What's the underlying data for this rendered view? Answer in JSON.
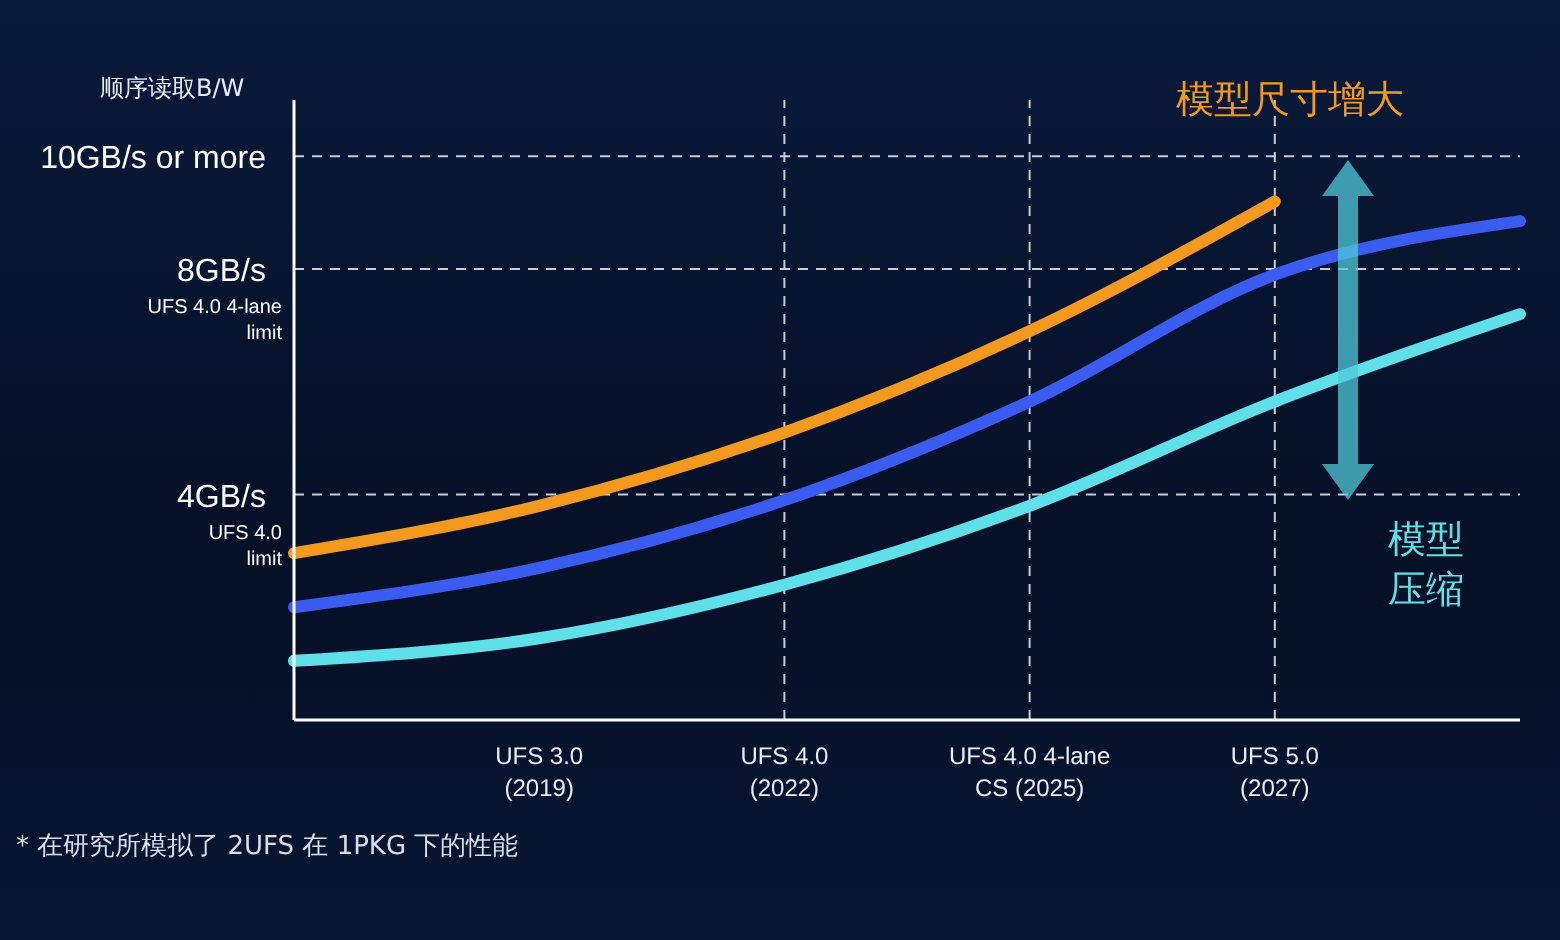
{
  "chart_data": {
    "type": "line",
    "ylabel": "顺序读取B/W",
    "categories": [
      null,
      "UFS 3.0\n(2019)",
      "UFS 4.0\n(2022)",
      "UFS 4.0 4-lane\nCS (2025)",
      "UFS 5.0\n(2027)",
      null
    ],
    "series": [
      {
        "color": "#f39a1e",
        "values": [
          2.96,
          3.8,
          5.1,
          6.9,
          9.2,
          null
        ]
      },
      {
        "color": "#3a5cf0",
        "values": [
          2.0,
          2.7,
          3.9,
          5.65,
          7.9,
          8.85
        ]
      },
      {
        "color": "#5fe0e8",
        "values": [
          1.05,
          1.45,
          2.4,
          3.8,
          5.65,
          7.2
        ]
      }
    ],
    "ylim": [
      0,
      11
    ],
    "yticks": [
      {
        "value": 4,
        "label": "4GB/s"
      },
      {
        "value": 8,
        "label": "8GB/s"
      },
      {
        "value": 10,
        "label": "10GB/s or more"
      }
    ],
    "ref_lines": [
      {
        "axis": "y",
        "value": 4,
        "label": "UFS 4.0\nlimit",
        "line_style": "dashed"
      },
      {
        "axis": "y",
        "value": 8,
        "label": "UFS 4.0 4-lane\nlimit",
        "line_style": "dashed"
      },
      {
        "axis": "y",
        "value": 10,
        "line_style": "dashed"
      },
      {
        "axis": "x",
        "value": "UFS 4.0\n(2022)",
        "line_style": "dashed"
      },
      {
        "axis": "x",
        "value": "UFS 4.0 4-lane\nCS (2025)",
        "line_style": "dashed"
      },
      {
        "axis": "x",
        "value": "UFS 5.0\n(2027)",
        "line_style": "dashed"
      }
    ],
    "annotations": [
      "模型尺寸增大",
      "模型压缩",
      "* 在研究所模拟了 2UFS 在 1PKG 下的性能"
    ],
    "marker": "none",
    "line_style": "solid",
    "grid": false,
    "legend": false
  }
}
